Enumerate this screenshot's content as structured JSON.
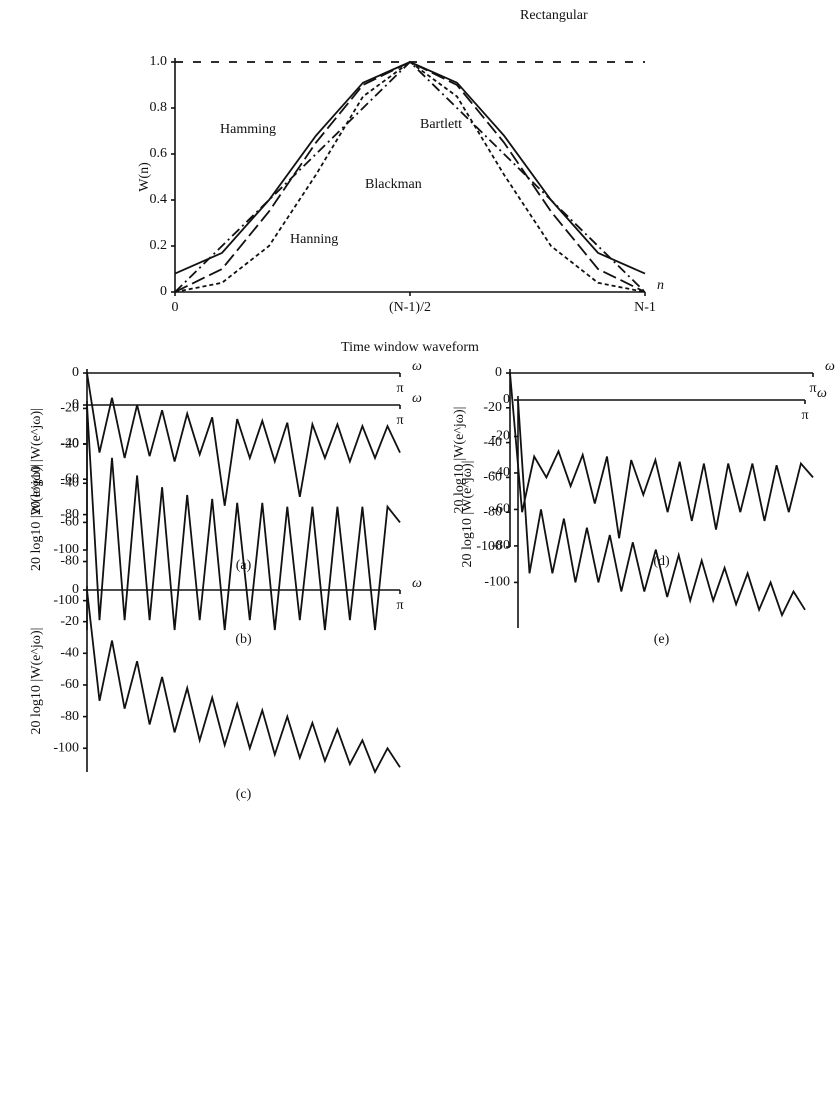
{
  "chart_data": [
    {
      "type": "line",
      "title": "Time window waveform",
      "y_label": "W(n)",
      "x_label": "n",
      "x": [
        0,
        0.1,
        0.2,
        0.3,
        0.4,
        0.5,
        0.6,
        0.7,
        0.8,
        0.9,
        1
      ],
      "xlim": [
        0,
        1
      ],
      "ylim": [
        0,
        1
      ],
      "xticks": [
        0,
        {
          "value": 0.5,
          "label": "(N-1)/2"
        },
        {
          "value": 1,
          "label": "N-1"
        }
      ],
      "yticks": [
        0,
        0.2,
        0.4,
        0.6,
        0.8,
        {
          "value": 1,
          "label": "1.0"
        }
      ],
      "series": [
        {
          "name": "Rectangular",
          "color": "#111111",
          "values": [
            1,
            1,
            1,
            1,
            1,
            1,
            1,
            1,
            1,
            1,
            1
          ]
        },
        {
          "name": "Bartlett",
          "color": "#111111",
          "values": [
            0,
            0.2,
            0.4,
            0.6,
            0.8,
            1,
            0.8,
            0.6,
            0.4,
            0.2,
            0
          ]
        },
        {
          "name": "Hamming",
          "color": "#111111",
          "values": [
            0.08,
            0.17,
            0.4,
            0.68,
            0.91,
            1,
            0.91,
            0.68,
            0.4,
            0.17,
            0.08
          ]
        },
        {
          "name": "Blackman",
          "color": "#111111",
          "values": [
            0,
            0.04,
            0.2,
            0.51,
            0.85,
            1,
            0.85,
            0.51,
            0.2,
            0.04,
            0
          ]
        },
        {
          "name": "Hanning",
          "color": "#111111",
          "values": [
            0,
            0.1,
            0.35,
            0.65,
            0.9,
            1,
            0.9,
            0.65,
            0.35,
            0.1,
            0
          ]
        }
      ]
    },
    {
      "type": "line",
      "title": "(a)",
      "y_label": "20 log10 |W(e^jω)|",
      "x_label": "ω",
      "color": "#111111",
      "x": [
        0,
        0.04,
        0.08,
        0.12,
        0.16,
        0.2,
        0.24,
        0.28,
        0.32,
        0.36,
        0.4,
        0.44,
        0.48,
        0.52,
        0.56,
        0.6,
        0.64,
        0.68,
        0.72,
        0.76,
        0.8,
        0.84,
        0.88,
        0.92,
        0.96,
        1
      ],
      "values": [
        0,
        -45,
        -14,
        -48,
        -18,
        -47,
        -21,
        -50,
        -23,
        -46,
        -25,
        -75,
        -26,
        -48,
        -27,
        -50,
        -28,
        -70,
        -29,
        -48,
        -29,
        -50,
        -30,
        -48,
        -30,
        -45
      ],
      "xlim": [
        0,
        1
      ],
      "ylim": [
        -100,
        0
      ],
      "xticks": [
        {
          "value": 1,
          "label": "π"
        }
      ],
      "yticks": [
        0,
        -20,
        -40,
        -60,
        -80,
        -100
      ]
    },
    {
      "type": "line",
      "title": "(b)",
      "y_label": "20 log10 |W(e^jω)|",
      "x_label": "ω",
      "color": "#111111",
      "x": [
        0,
        0.04,
        0.08,
        0.12,
        0.16,
        0.2,
        0.24,
        0.28,
        0.32,
        0.36,
        0.4,
        0.44,
        0.48,
        0.52,
        0.56,
        0.6,
        0.64,
        0.68,
        0.72,
        0.76,
        0.8,
        0.84,
        0.88,
        0.92,
        0.96,
        1
      ],
      "values": [
        0,
        -110,
        -27,
        -110,
        -36,
        -110,
        -42,
        -115,
        -46,
        -110,
        -48,
        -115,
        -50,
        -110,
        -50,
        -115,
        -52,
        -110,
        -52,
        -115,
        -52,
        -110,
        -52,
        -115,
        -52,
        -60
      ],
      "xlim": [
        0,
        1
      ],
      "ylim": [
        -115,
        0
      ],
      "xticks": [
        {
          "value": 1,
          "label": "π"
        }
      ],
      "yticks": [
        0,
        -20,
        -40,
        -60,
        -80,
        -100
      ]
    },
    {
      "type": "line",
      "title": "(c)",
      "y_label": "20 log10 |W(e^jω)|",
      "x_label": "ω",
      "color": "#111111",
      "x": [
        0,
        0.04,
        0.08,
        0.12,
        0.16,
        0.2,
        0.24,
        0.28,
        0.32,
        0.36,
        0.4,
        0.44,
        0.48,
        0.52,
        0.56,
        0.6,
        0.64,
        0.68,
        0.72,
        0.76,
        0.8,
        0.84,
        0.88,
        0.92,
        0.96,
        1
      ],
      "values": [
        0,
        -70,
        -32,
        -75,
        -45,
        -85,
        -55,
        -90,
        -62,
        -95,
        -68,
        -98,
        -72,
        -100,
        -76,
        -104,
        -80,
        -106,
        -84,
        -108,
        -88,
        -110,
        -95,
        -115,
        -100,
        -112
      ],
      "xlim": [
        0,
        1
      ],
      "ylim": [
        -115,
        0
      ],
      "xticks": [
        {
          "value": 1,
          "label": "π"
        }
      ],
      "yticks": [
        0,
        -20,
        -40,
        -60,
        -80,
        -100
      ]
    },
    {
      "type": "line",
      "title": "(d)",
      "y_label": "20 log10 |W(e^jω)|",
      "x_label": "ω",
      "color": "#111111",
      "x": [
        0,
        0.04,
        0.08,
        0.12,
        0.16,
        0.2,
        0.24,
        0.28,
        0.32,
        0.36,
        0.4,
        0.44,
        0.48,
        0.52,
        0.56,
        0.6,
        0.64,
        0.68,
        0.72,
        0.76,
        0.8,
        0.84,
        0.88,
        0.92,
        0.96,
        1
      ],
      "values": [
        0,
        -80,
        -48,
        -60,
        -45,
        -65,
        -47,
        -75,
        -48,
        -95,
        -50,
        -70,
        -50,
        -80,
        -51,
        -85,
        -52,
        -90,
        -52,
        -80,
        -52,
        -85,
        -53,
        -80,
        -52,
        -60
      ],
      "xlim": [
        0,
        1
      ],
      "ylim": [
        -100,
        0
      ],
      "xticks": [
        {
          "value": 1,
          "label": "π"
        }
      ],
      "yticks": [
        0,
        -20,
        -40,
        -60,
        -80,
        -100
      ]
    },
    {
      "type": "line",
      "title": "(e)",
      "y_label": "20 log10 |W(e^jω)|",
      "x_label": "ω",
      "color": "#111111",
      "x": [
        0,
        0.04,
        0.08,
        0.12,
        0.16,
        0.2,
        0.24,
        0.28,
        0.32,
        0.36,
        0.4,
        0.44,
        0.48,
        0.52,
        0.56,
        0.6,
        0.64,
        0.68,
        0.72,
        0.76,
        0.8,
        0.84,
        0.88,
        0.92,
        0.96,
        1
      ],
      "values": [
        0,
        -95,
        -60,
        -95,
        -65,
        -100,
        -70,
        -100,
        -74,
        -105,
        -78,
        -105,
        -82,
        -108,
        -85,
        -110,
        -88,
        -110,
        -92,
        -112,
        -95,
        -115,
        -100,
        -118,
        -105,
        -115
      ],
      "xlim": [
        0,
        1
      ],
      "ylim": [
        -125,
        0
      ],
      "xticks": [
        {
          "value": 1,
          "label": "π"
        }
      ],
      "yticks": [
        0,
        -20,
        -40,
        -60,
        -80,
        -100
      ]
    }
  ]
}
